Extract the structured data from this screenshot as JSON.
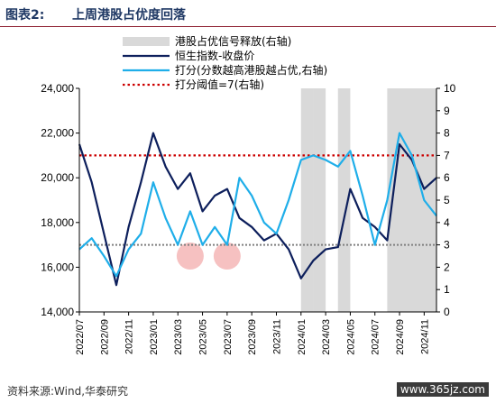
{
  "header": {
    "figure_label": "图表2:",
    "title": "上周港股占优度回落"
  },
  "footer": {
    "source": "资料来源:Wind,华泰研究",
    "watermark": "www.365jz.com"
  },
  "colors": {
    "shade": "#d9d9d9",
    "hsi": "#0d1f5c",
    "score": "#1faee9",
    "threshold": "#cc0000",
    "ref_line": "#7f7f7f",
    "circle": "#f4b6b6"
  },
  "chart_data": {
    "type": "line",
    "left_axis": {
      "ylim": [
        14000,
        24000
      ],
      "ticks": [
        "14,000",
        "16,000",
        "18,000",
        "20,000",
        "22,000",
        "24,000"
      ]
    },
    "right_axis": {
      "ylim": [
        0,
        10
      ],
      "ticks": [
        "0",
        "1",
        "2",
        "3",
        "4",
        "5",
        "6",
        "7",
        "8",
        "9",
        "10"
      ]
    },
    "x_ticks": [
      "2022/07",
      "2022/09",
      "2022/11",
      "2023/01",
      "2023/03",
      "2023/05",
      "2023/07",
      "2023/09",
      "2023/11",
      "2024/01",
      "2024/03",
      "2024/05",
      "2024/07",
      "2024/09",
      "2024/11"
    ],
    "legend": [
      {
        "key": "shade",
        "label": "港股占优信号释放(右轴)"
      },
      {
        "key": "hsi",
        "label": "恒生指数-收盘价"
      },
      {
        "key": "score",
        "label": "打分(分数越高港股越占优,右轴)"
      },
      {
        "key": "threshold",
        "label": "打分阈值=7(右轴)"
      }
    ],
    "shaded_periods": [
      [
        "2024/01",
        "2024/02"
      ],
      [
        "2024/02",
        "2024/03"
      ],
      [
        "2024/04",
        "2024/05"
      ],
      [
        "2024/08",
        "2024/12"
      ]
    ],
    "threshold": 7,
    "reference_line": 3,
    "highlight_circles": [
      [
        "2023/04",
        2.5
      ],
      [
        "2023/07",
        2.5
      ]
    ],
    "series": [
      {
        "name": "恒生指数-收盘价",
        "axis": "left",
        "x": [
          "2022/07",
          "2022/08",
          "2022/09",
          "2022/10",
          "2022/11",
          "2022/12",
          "2023/01",
          "2023/02",
          "2023/03",
          "2023/04",
          "2023/05",
          "2023/06",
          "2023/07",
          "2023/08",
          "2023/09",
          "2023/10",
          "2023/11",
          "2023/12",
          "2024/01",
          "2024/02",
          "2024/03",
          "2024/04",
          "2024/05",
          "2024/06",
          "2024/07",
          "2024/08",
          "2024/09",
          "2024/10",
          "2024/11",
          "2024/12"
        ],
        "values": [
          21500,
          19800,
          17500,
          15200,
          17800,
          19800,
          22000,
          20500,
          19500,
          20200,
          18500,
          19200,
          19500,
          18200,
          17800,
          17200,
          17500,
          16800,
          15500,
          16300,
          16800,
          16900,
          19500,
          18200,
          17800,
          17200,
          21500,
          20800,
          19500,
          20000
        ]
      },
      {
        "name": "打分(分数越高港股越占优,右轴)",
        "axis": "right",
        "x": [
          "2022/07",
          "2022/08",
          "2022/09",
          "2022/10",
          "2022/11",
          "2022/12",
          "2023/01",
          "2023/02",
          "2023/03",
          "2023/04",
          "2023/05",
          "2023/06",
          "2023/07",
          "2023/08",
          "2023/09",
          "2023/10",
          "2023/11",
          "2023/12",
          "2024/01",
          "2024/02",
          "2024/03",
          "2024/04",
          "2024/05",
          "2024/06",
          "2024/07",
          "2024/08",
          "2024/09",
          "2024/10",
          "2024/11",
          "2024/12"
        ],
        "values": [
          2.8,
          3.3,
          2.5,
          1.6,
          2.8,
          3.5,
          5.8,
          4.2,
          3.0,
          4.5,
          3.0,
          3.8,
          3.0,
          6.0,
          5.2,
          4.0,
          3.5,
          5.0,
          6.8,
          7.0,
          6.8,
          6.5,
          7.2,
          5.2,
          3.0,
          5.0,
          8.0,
          7.0,
          5.0,
          4.3
        ]
      }
    ]
  }
}
